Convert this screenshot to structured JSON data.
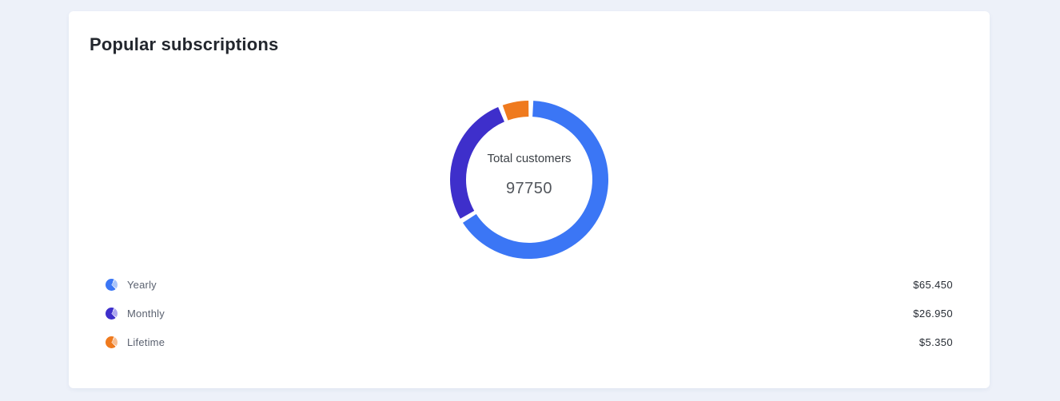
{
  "background_color": "#edf1f9",
  "card": {
    "title": "Popular subscriptions"
  },
  "chart_data": {
    "type": "pie",
    "subtype": "donut",
    "title": "Popular subscriptions",
    "center_label": "Total customers",
    "center_value": "97750",
    "total": 97750,
    "legend_position": "bottom",
    "segment_gap_degrees": 3.5,
    "start_angle_degrees": 3,
    "series": [
      {
        "name": "Yearly",
        "value": 65450,
        "display_value": "$65.450",
        "color": "#3B76F5",
        "light_color": "#A9C4FA"
      },
      {
        "name": "Monthly",
        "value": 26950,
        "display_value": "$26.950",
        "color": "#3E2FCB",
        "light_color": "#ADA7F0"
      },
      {
        "name": "Lifetime",
        "value": 5350,
        "display_value": "$5.350",
        "color": "#EF7A1E",
        "light_color": "#F6BE93"
      }
    ]
  }
}
